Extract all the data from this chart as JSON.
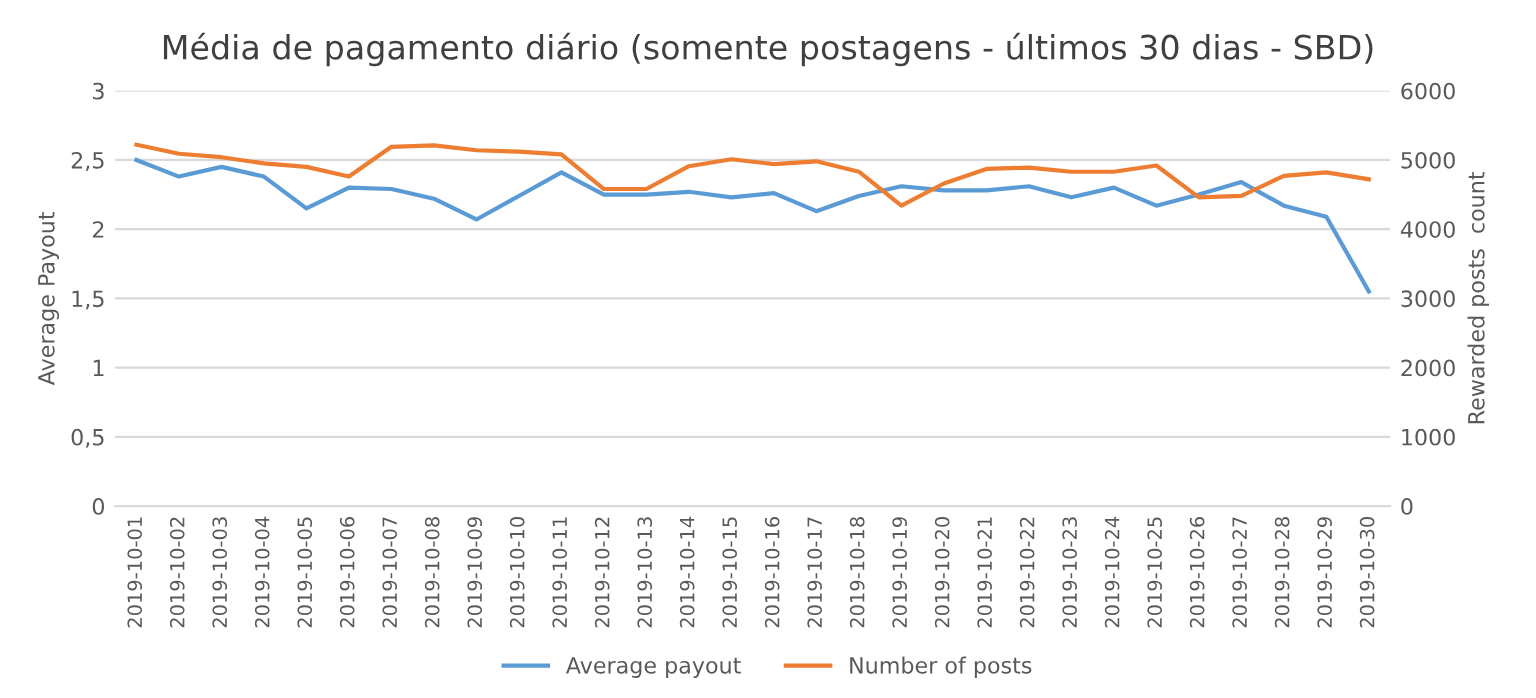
{
  "chart_data": {
    "type": "line",
    "title": "Média de pagamento diário (somente postagens - últimos 30 dias - SBD)",
    "ylabel": "Average Payout",
    "y2label": "Rewarded posts  count",
    "categories": [
      "2019-10-01",
      "2019-10-02",
      "2019-10-03",
      "2019-10-04",
      "2019-10-05",
      "2019-10-06",
      "2019-10-07",
      "2019-10-08",
      "2019-10-09",
      "2019-10-10",
      "2019-10-11",
      "2019-10-12",
      "2019-10-13",
      "2019-10-14",
      "2019-10-15",
      "2019-10-16",
      "2019-10-17",
      "2019-10-18",
      "2019-10-19",
      "2019-10-20",
      "2019-10-21",
      "2019-10-22",
      "2019-10-23",
      "2019-10-24",
      "2019-10-25",
      "2019-10-26",
      "2019-10-27",
      "2019-10-28",
      "2019-10-29",
      "2019-10-30"
    ],
    "series": [
      {
        "name": "Average payout",
        "color": "#5b9bd5",
        "values": [
          2.5,
          2.38,
          2.45,
          2.38,
          2.15,
          2.3,
          2.29,
          2.22,
          2.07,
          2.24,
          2.41,
          2.25,
          2.25,
          2.27,
          2.23,
          2.26,
          2.13,
          2.24,
          2.31,
          2.28,
          2.28,
          2.31,
          2.23,
          2.3,
          2.17,
          2.25,
          2.34,
          2.17,
          2.09,
          1.55
        ]
      },
      {
        "name": "Number of posts",
        "color": "#ed7d31",
        "axis": "y2",
        "values": [
          5220,
          5090,
          5040,
          4950,
          4900,
          4760,
          5190,
          5210,
          5140,
          5120,
          5080,
          4580,
          4580,
          4910,
          5010,
          4940,
          4980,
          4830,
          4340,
          4660,
          4870,
          4890,
          4830,
          4830,
          4920,
          4460,
          4480,
          4770,
          4820,
          4720
        ]
      }
    ],
    "ylim": [
      0,
      3
    ],
    "yticks": [
      0,
      {
        "value": 0.5,
        "label": "0,5"
      },
      1,
      {
        "value": 1.5,
        "label": "1,5"
      },
      2,
      {
        "value": 2.5,
        "label": "2,5"
      },
      3
    ],
    "y2lim": [
      0,
      6000
    ],
    "y2ticks": [
      0,
      1000,
      2000,
      3000,
      4000,
      5000,
      6000
    ],
    "grid": "y",
    "legend": "bottom",
    "marker": "none",
    "line_style": "solid"
  }
}
